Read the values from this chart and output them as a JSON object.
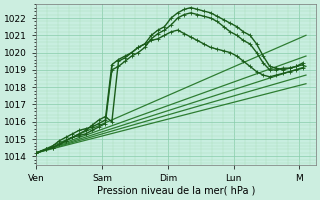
{
  "xlabel": "Pression niveau de la mer( hPa )",
  "background_color": "#cceee0",
  "plot_bg_color": "#c8eee0",
  "grid_color_major": "#88ccaa",
  "grid_color_minor": "#aaddbb",
  "line_color_dark": "#1a5c1a",
  "line_color_mid": "#2e7d32",
  "ylim": [
    1013.5,
    1022.8
  ],
  "xlim": [
    0.0,
    4.25
  ],
  "yticks": [
    1014,
    1015,
    1016,
    1017,
    1018,
    1019,
    1020,
    1021,
    1022
  ],
  "xtick_labels": [
    "Ven",
    "Sam",
    "Dim",
    "Lun",
    "M"
  ],
  "xtick_positions": [
    0,
    1,
    2,
    3,
    4
  ],
  "series": [
    {
      "x": [
        0.0,
        0.15,
        0.25,
        0.35,
        0.45,
        0.55,
        0.65,
        0.75,
        0.85,
        0.95,
        1.05,
        1.15,
        1.25,
        1.35,
        1.45,
        1.55,
        1.65,
        1.75,
        1.85,
        1.95,
        2.05,
        2.15,
        2.25,
        2.35,
        2.45,
        2.55,
        2.65,
        2.75,
        2.85,
        2.95,
        3.05,
        3.15,
        3.25,
        3.35,
        3.45,
        3.55,
        3.65,
        3.75,
        3.85,
        3.95,
        4.05
      ],
      "y": [
        1014.2,
        1014.4,
        1014.6,
        1014.9,
        1015.1,
        1015.3,
        1015.5,
        1015.6,
        1015.7,
        1015.9,
        1016.1,
        1019.3,
        1019.6,
        1019.8,
        1020.0,
        1020.3,
        1020.5,
        1021.0,
        1021.3,
        1021.5,
        1022.0,
        1022.3,
        1022.5,
        1022.6,
        1022.5,
        1022.4,
        1022.3,
        1022.1,
        1021.9,
        1021.7,
        1021.5,
        1021.2,
        1021.0,
        1020.5,
        1019.8,
        1019.2,
        1019.1,
        1019.0,
        1019.1,
        1019.2,
        1019.3
      ],
      "marker": true,
      "lw": 1.0,
      "color": "#1a5c1a"
    },
    {
      "x": [
        0.0,
        0.15,
        0.25,
        0.35,
        0.45,
        0.55,
        0.65,
        0.75,
        0.85,
        0.95,
        1.05,
        1.15,
        1.25,
        1.35,
        1.45,
        1.55,
        1.65,
        1.75,
        1.85,
        1.95,
        2.05,
        2.15,
        2.25,
        2.35,
        2.45,
        2.55,
        2.65,
        2.75,
        2.85,
        2.95,
        3.05,
        3.15,
        3.25,
        3.35,
        3.45,
        3.55,
        3.65,
        3.75,
        3.85,
        3.95,
        4.05
      ],
      "y": [
        1014.2,
        1014.4,
        1014.5,
        1014.7,
        1014.9,
        1015.1,
        1015.2,
        1015.3,
        1015.5,
        1015.7,
        1015.9,
        1019.0,
        1019.2,
        1019.5,
        1019.8,
        1020.0,
        1020.3,
        1020.8,
        1021.1,
        1021.3,
        1021.6,
        1022.0,
        1022.2,
        1022.3,
        1022.2,
        1022.1,
        1022.0,
        1021.8,
        1021.5,
        1021.2,
        1021.0,
        1020.7,
        1020.5,
        1020.0,
        1019.4,
        1019.0,
        1019.0,
        1019.1,
        1019.1,
        1019.2,
        1019.4
      ],
      "marker": true,
      "lw": 1.0,
      "color": "#1a5c1a"
    },
    {
      "x": [
        0.0,
        0.15,
        0.25,
        0.35,
        0.45,
        0.55,
        0.65,
        0.75,
        0.85,
        0.95,
        1.05,
        1.15,
        1.25,
        1.35,
        1.45,
        1.55,
        1.65,
        1.75,
        1.85,
        1.95,
        2.05,
        2.15,
        2.25,
        2.35,
        2.45,
        2.55,
        2.65,
        2.75,
        2.85,
        2.95,
        3.05,
        3.15,
        3.25,
        3.35,
        3.45,
        3.55,
        3.65,
        3.75,
        3.85,
        3.95,
        4.05
      ],
      "y": [
        1014.2,
        1014.4,
        1014.5,
        1014.7,
        1014.9,
        1015.1,
        1015.3,
        1015.5,
        1015.8,
        1016.1,
        1016.3,
        1016.0,
        1019.5,
        1019.7,
        1020.0,
        1020.3,
        1020.5,
        1020.7,
        1020.8,
        1021.0,
        1021.2,
        1021.3,
        1021.1,
        1020.9,
        1020.7,
        1020.5,
        1020.3,
        1020.2,
        1020.1,
        1020.0,
        1019.8,
        1019.5,
        1019.2,
        1018.9,
        1018.7,
        1018.6,
        1018.7,
        1018.8,
        1018.9,
        1019.0,
        1019.1
      ],
      "marker": true,
      "lw": 1.0,
      "color": "#1a5c1a"
    },
    {
      "x": [
        0.0,
        4.1
      ],
      "y": [
        1014.2,
        1021.0
      ],
      "marker": false,
      "lw": 0.9,
      "color": "#2e7d32"
    },
    {
      "x": [
        0.0,
        4.1
      ],
      "y": [
        1014.2,
        1019.8
      ],
      "marker": false,
      "lw": 0.9,
      "color": "#2e7d32"
    },
    {
      "x": [
        0.0,
        4.1
      ],
      "y": [
        1014.2,
        1019.2
      ],
      "marker": false,
      "lw": 0.9,
      "color": "#2e7d32"
    },
    {
      "x": [
        0.0,
        4.1
      ],
      "y": [
        1014.2,
        1018.7
      ],
      "marker": false,
      "lw": 0.9,
      "color": "#2e7d32"
    },
    {
      "x": [
        0.0,
        4.1
      ],
      "y": [
        1014.2,
        1018.2
      ],
      "marker": false,
      "lw": 0.9,
      "color": "#2e7d32"
    }
  ]
}
